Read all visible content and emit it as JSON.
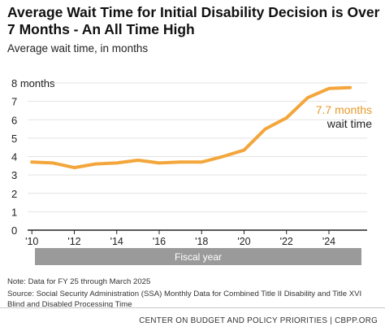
{
  "title": "Average Wait Time for Initial Disability Decision is Over 7 Months - An All Time High",
  "subtitle": "Average wait time, in months",
  "colors": {
    "line": "#F3A63B",
    "annotation": "#E89A2A",
    "band": "#9A9A9A",
    "axis": "#222222",
    "grid": "#E3E3E3"
  },
  "chart_data": {
    "type": "line",
    "x_axis_title": "Fiscal year",
    "x": [
      2010,
      2011,
      2012,
      2013,
      2014,
      2015,
      2016,
      2017,
      2018,
      2019,
      2020,
      2021,
      2022,
      2023,
      2024,
      2025
    ],
    "x_ticks": [
      2010,
      2012,
      2014,
      2016,
      2018,
      2020,
      2022,
      2024
    ],
    "x_tick_labels": [
      "'10",
      "'12",
      "'14",
      "'16",
      "'18",
      "'20",
      "'22",
      "'24"
    ],
    "xlim": [
      2009.8,
      2025.8
    ],
    "y_ticks": [
      0,
      1,
      2,
      3,
      4,
      5,
      6,
      7,
      8
    ],
    "y_tick_labels": [
      "0",
      "1",
      "2",
      "3",
      "4",
      "5",
      "6",
      "7",
      "8 months"
    ],
    "ylim": [
      0,
      8
    ],
    "grid": true,
    "series": [
      {
        "values": [
          3.7,
          3.65,
          3.4,
          3.6,
          3.65,
          3.8,
          3.65,
          3.7,
          3.7,
          4.0,
          4.35,
          5.5,
          6.1,
          7.2,
          7.7,
          7.75
        ]
      }
    ],
    "annotation": {
      "value_label": "7.7 months",
      "text_label": "wait time"
    }
  },
  "notes": {
    "data_note": "Note: Data for FY 25 through March 2025",
    "source": "Source: Social Security Administration (SSA) Monthly Data for Combined Title II Disability and Title XVI Blind and Disabled Processing Time"
  },
  "footer": "CENTER ON BUDGET AND POLICY PRIORITIES | CBPP.ORG"
}
